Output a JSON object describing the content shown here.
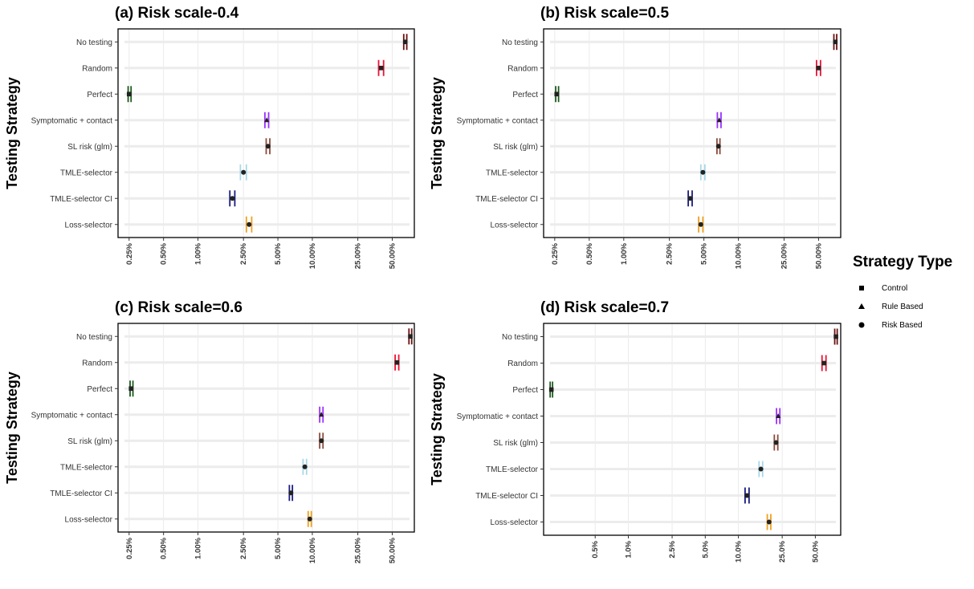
{
  "colors": {
    "No testing": "#6b1111",
    "Random": "#ee1133",
    "Perfect": "#1c5a1c",
    "Symptomatic + contact": "#9b30ff",
    "SL risk (glm)": "#8a4a3a",
    "TMLE-selector": "#a8d8e8",
    "TMLE-selector CI": "#1a1a80",
    "Loss-selector": "#f0a020"
  },
  "legend": {
    "title": "Strategy Type",
    "items": [
      {
        "label": "Control",
        "shape": "square"
      },
      {
        "label": "Rule Based",
        "shape": "triangle"
      },
      {
        "label": "Risk Based",
        "shape": "circle"
      }
    ]
  },
  "chart_data": [
    {
      "type": "scatter",
      "title": "(a) Risk scale-0.4",
      "xlabel": "",
      "ylabel": "Testing Strategy",
      "x_scale": "log",
      "xlim": [
        0.2,
        78
      ],
      "ticks": [
        {
          "value": 0.25,
          "label": "0.25%"
        },
        {
          "value": 0.5,
          "label": "0.50%"
        },
        {
          "value": 1.0,
          "label": "1.00%"
        },
        {
          "value": 2.5,
          "label": "2.50%"
        },
        {
          "value": 5.0,
          "label": "5.00%"
        },
        {
          "value": 10.0,
          "label": "10.00%"
        },
        {
          "value": 25.0,
          "label": "25.00%"
        },
        {
          "value": 50.0,
          "label": "50.00%"
        }
      ],
      "categories": [
        "No testing",
        "Random",
        "Perfect",
        "Symptomatic + contact",
        "SL risk (glm)",
        "TMLE-selector",
        "TMLE-selector CI",
        "Loss-selector"
      ],
      "shapes": [
        "square",
        "square",
        "square",
        "triangle",
        "circle",
        "circle",
        "circle",
        "circle"
      ],
      "values": [
        65.0,
        40.0,
        0.25,
        4.0,
        4.1,
        2.5,
        2.0,
        2.8
      ],
      "lower": [
        63.0,
        38.0,
        0.245,
        3.85,
        3.95,
        2.35,
        1.9,
        2.65
      ],
      "upper": [
        67.0,
        42.0,
        0.26,
        4.15,
        4.25,
        2.65,
        2.1,
        2.95
      ]
    },
    {
      "type": "scatter",
      "title": "(b) Risk scale=0.5",
      "xlabel": "",
      "ylabel": "Testing Strategy",
      "x_scale": "log",
      "xlim": [
        0.2,
        78
      ],
      "ticks": [
        {
          "value": 0.25,
          "label": "0.25%"
        },
        {
          "value": 0.5,
          "label": "0.50%"
        },
        {
          "value": 1.0,
          "label": "1.00%"
        },
        {
          "value": 2.5,
          "label": "2.50%"
        },
        {
          "value": 5.0,
          "label": "5.00%"
        },
        {
          "value": 10.0,
          "label": "10.00%"
        },
        {
          "value": 25.0,
          "label": "25.00%"
        },
        {
          "value": 50.0,
          "label": "50.00%"
        }
      ],
      "categories": [
        "No testing",
        "Random",
        "Perfect",
        "Symptomatic + contact",
        "SL risk (glm)",
        "TMLE-selector",
        "TMLE-selector CI",
        "Loss-selector"
      ],
      "shapes": [
        "square",
        "square",
        "square",
        "triangle",
        "circle",
        "circle",
        "circle",
        "circle"
      ],
      "values": [
        70.0,
        50.0,
        0.26,
        6.8,
        6.7,
        4.9,
        3.8,
        4.7
      ],
      "lower": [
        68.0,
        48.0,
        0.255,
        6.55,
        6.5,
        4.7,
        3.65,
        4.5
      ],
      "upper": [
        72.0,
        52.0,
        0.27,
        7.05,
        6.9,
        5.1,
        3.95,
        4.9
      ]
    },
    {
      "type": "scatter",
      "title": "(c) Risk scale=0.6",
      "xlabel": "",
      "ylabel": "Testing Strategy",
      "x_scale": "log",
      "xlim": [
        0.2,
        78
      ],
      "ticks": [
        {
          "value": 0.25,
          "label": "0.25%"
        },
        {
          "value": 0.5,
          "label": "0.50%"
        },
        {
          "value": 1.0,
          "label": "1.00%"
        },
        {
          "value": 2.5,
          "label": "2.50%"
        },
        {
          "value": 5.0,
          "label": "5.00%"
        },
        {
          "value": 10.0,
          "label": "10.00%"
        },
        {
          "value": 25.0,
          "label": "25.00%"
        },
        {
          "value": 50.0,
          "label": "50.00%"
        }
      ],
      "categories": [
        "No testing",
        "Random",
        "Perfect",
        "Symptomatic + contact",
        "SL risk (glm)",
        "TMLE-selector",
        "TMLE-selector CI",
        "Loss-selector"
      ],
      "shapes": [
        "square",
        "square",
        "square",
        "triangle",
        "circle",
        "circle",
        "circle",
        "circle"
      ],
      "values": [
        72.0,
        55.0,
        0.26,
        12.0,
        12.0,
        8.6,
        6.5,
        9.5
      ],
      "lower": [
        70.0,
        53.0,
        0.255,
        11.6,
        11.6,
        8.3,
        6.3,
        9.2
      ],
      "upper": [
        74.0,
        57.0,
        0.27,
        12.4,
        12.4,
        8.9,
        6.7,
        9.8
      ]
    },
    {
      "type": "scatter",
      "title": "(d) Risk scale=0.7",
      "xlabel": "",
      "ylabel": "Testing Strategy",
      "x_scale": "log",
      "xlim": [
        0.17,
        85
      ],
      "ticks": [
        {
          "value": 0.5,
          "label": "0.5%"
        },
        {
          "value": 1.0,
          "label": "1.0%"
        },
        {
          "value": 2.5,
          "label": "2.5%"
        },
        {
          "value": 5.0,
          "label": "5.0%"
        },
        {
          "value": 10.0,
          "label": "10.0%"
        },
        {
          "value": 25.0,
          "label": "25.0%"
        },
        {
          "value": 50.0,
          "label": "50.0%"
        }
      ],
      "categories": [
        "No testing",
        "Random",
        "Perfect",
        "Symptomatic + contact",
        "SL risk (glm)",
        "TMLE-selector",
        "TMLE-selector CI",
        "Loss-selector"
      ],
      "shapes": [
        "square",
        "square",
        "square",
        "triangle",
        "circle",
        "circle",
        "circle",
        "circle"
      ],
      "values": [
        77.0,
        60.0,
        0.2,
        23.0,
        22.0,
        16.0,
        12.0,
        19.0
      ],
      "lower": [
        75.0,
        57.5,
        0.195,
        22.2,
        21.2,
        15.4,
        11.5,
        18.3
      ],
      "upper": [
        79.0,
        62.5,
        0.205,
        23.8,
        22.8,
        16.6,
        12.5,
        19.7
      ]
    }
  ]
}
